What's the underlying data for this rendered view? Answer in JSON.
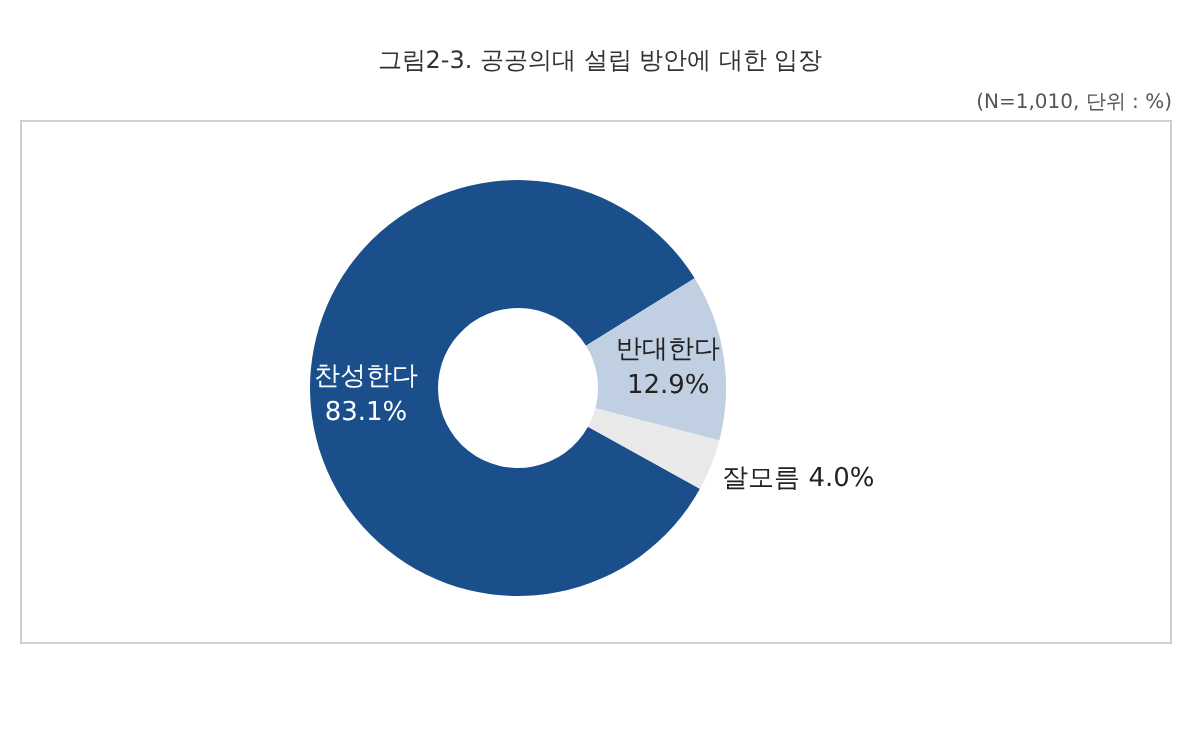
{
  "chart_data": {
    "type": "donut",
    "title": "그림2-3. 공공의대 설립 방안에 대한 입장",
    "annotations": [
      "(N=1,010, 단위 : %)"
    ],
    "categories": [
      "찬성한다",
      "반대한다",
      "잘모름"
    ],
    "values": [
      83.1,
      12.9,
      4.0
    ],
    "value_labels": [
      "83.1%",
      "12.9%",
      "4.0%"
    ],
    "colors": [
      "#1a4f8b",
      "#c0cfe2",
      "#e9e9e9"
    ],
    "legend": false
  }
}
